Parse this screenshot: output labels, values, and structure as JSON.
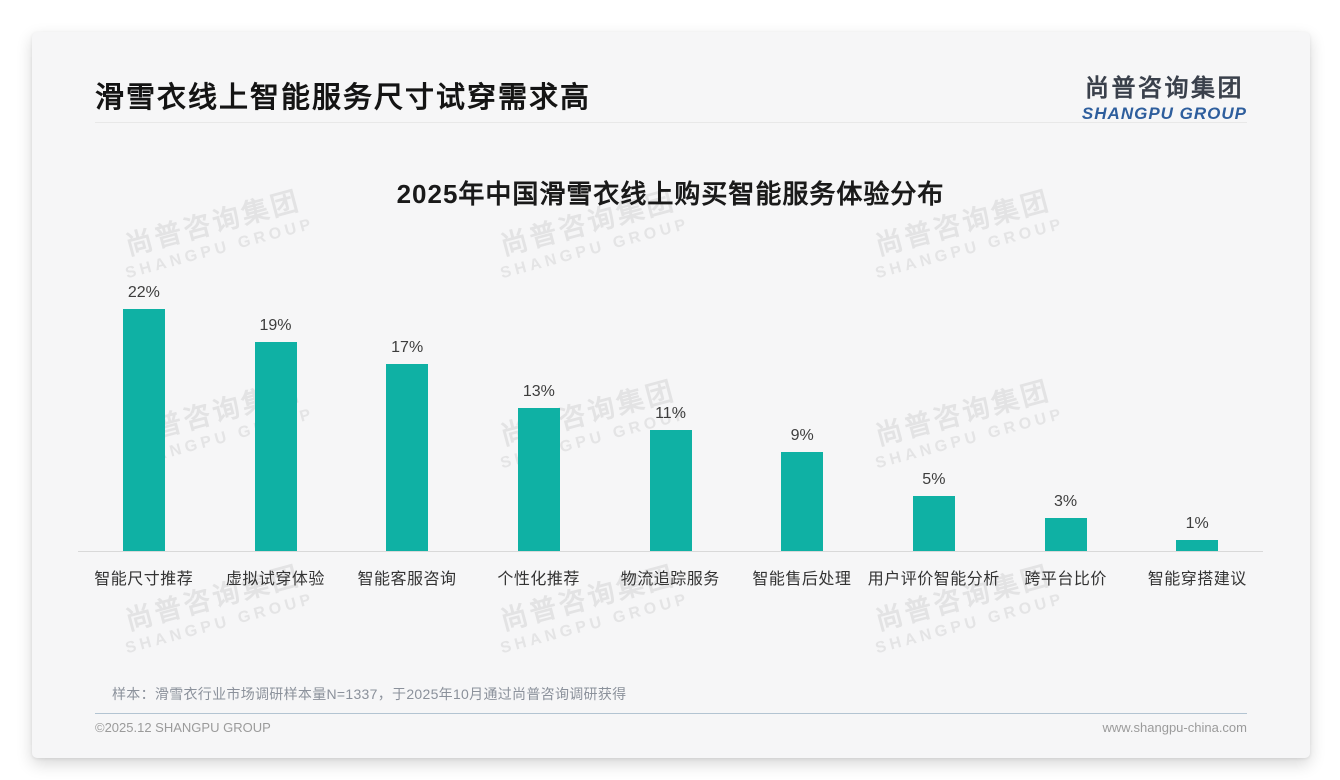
{
  "page_title": "滑雪衣线上智能服务尺寸试穿需求高",
  "logo": {
    "cn": "尚普咨询集团",
    "en": "SHANGPU GROUP"
  },
  "watermark": {
    "cn": "尚普咨询集团",
    "en": "SHANGPU GROUP"
  },
  "chart_data": {
    "type": "bar",
    "title": "2025年中国滑雪衣线上购买智能服务体验分布",
    "categories": [
      "智能尺寸推荐",
      "虚拟试穿体验",
      "智能客服咨询",
      "个性化推荐",
      "物流追踪服务",
      "智能售后处理",
      "用户评价智能分析",
      "跨平台比价",
      "智能穿搭建议"
    ],
    "values": [
      22,
      19,
      17,
      13,
      11,
      9,
      5,
      3,
      1
    ],
    "unit": "%",
    "value_labels": [
      "22%",
      "19%",
      "17%",
      "13%",
      "11%",
      "9%",
      "5%",
      "3%",
      "1%"
    ],
    "ylim": [
      0,
      24
    ],
    "grid": false,
    "legend": "none",
    "bar_color": "#0fb1a4"
  },
  "footnote": "样本：滑雪衣行业市场调研样本量N=1337，于2025年10月通过尚普咨询调研获得",
  "footer": {
    "left": "©2025.12 SHANGPU GROUP",
    "right": "www.shangpu-china.com"
  },
  "colors": {
    "bar": "#0fb1a4",
    "logo_blue": "#2e5e9d",
    "footer_divider": "#b3c4d2",
    "card_bg": "#f6f6f7"
  }
}
